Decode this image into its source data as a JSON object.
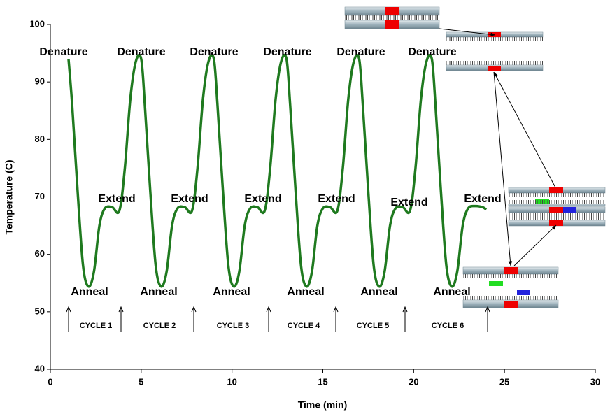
{
  "chart_data": {
    "type": "line",
    "xlabel": "Time (min)",
    "ylabel": "Temperature (C)",
    "xlim": [
      0,
      30
    ],
    "xticks": [
      0,
      5,
      10,
      15,
      20,
      25,
      30
    ],
    "ylim": [
      40,
      100
    ],
    "yticks": [
      40,
      50,
      60,
      70,
      80,
      90,
      100
    ],
    "grid": false,
    "series": [
      {
        "color": "#1f7a1f",
        "x": [
          1,
          1.2,
          1.5,
          1.8,
          2.1,
          2.4,
          2.7,
          3,
          3.4,
          3.8,
          4.1,
          4.4,
          4.7,
          5,
          5.2,
          5.5,
          5.8,
          6.1,
          6.4,
          6.7,
          7,
          7.4,
          7.8,
          8.1,
          8.4,
          8.7,
          9,
          9.2,
          9.5,
          9.8,
          10.1,
          10.4,
          10.7,
          11,
          11.4,
          11.8,
          12.1,
          12.4,
          12.7,
          13,
          13.2,
          13.5,
          13.8,
          14.1,
          14.4,
          14.7,
          15,
          15.4,
          15.8,
          16.1,
          16.4,
          16.7,
          17,
          17.2,
          17.5,
          17.8,
          18.1,
          18.4,
          18.7,
          19,
          19.4,
          19.8,
          20.1,
          20.4,
          20.7,
          21,
          21.2,
          21.5,
          21.8,
          22.1,
          22.4,
          22.7,
          23,
          23.4,
          23.8,
          24
        ],
        "values": [
          94,
          86,
          71,
          58,
          54.4,
          57,
          65,
          68,
          68.2,
          67.6,
          75,
          87,
          93.5,
          94,
          86,
          71,
          58,
          54.4,
          57,
          65,
          68,
          68.2,
          67.6,
          75,
          87,
          93.5,
          94,
          86,
          71,
          58,
          54.4,
          57,
          65,
          68,
          68.2,
          67.6,
          75,
          87,
          93.5,
          94,
          86,
          71,
          58,
          54.4,
          57,
          65,
          68,
          68.2,
          67.6,
          75,
          87,
          93.5,
          94,
          86,
          71,
          58,
          54.4,
          57,
          65,
          68,
          68.2,
          67.6,
          75,
          87,
          93.5,
          94,
          86,
          71,
          58,
          54.4,
          57,
          65,
          68,
          68.4,
          68.2,
          67.8
        ]
      }
    ],
    "annotations": {
      "denature": [
        "Denature",
        "Denature",
        "Denature",
        "Denature",
        "Denature",
        "Denature"
      ],
      "extend": [
        "Extend",
        "Extend",
        "Extend",
        "Extend",
        "Extend",
        "Extend"
      ],
      "anneal": [
        "Anneal",
        "Anneal",
        "Anneal",
        "Anneal",
        "Anneal",
        "Anneal"
      ],
      "cycles": [
        "CYCLE 1",
        "CYCLE 2",
        "CYCLE 3",
        "CYCLE 4",
        "CYCLE 5",
        "CYCLE 6"
      ]
    }
  }
}
